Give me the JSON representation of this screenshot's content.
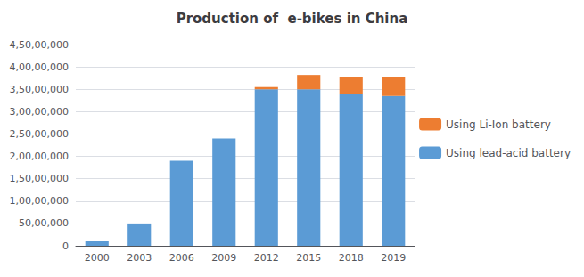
{
  "chart_data": {
    "type": "bar",
    "title": "Production of  e-bikes in China",
    "categories": [
      "2000",
      "2003",
      "2006",
      "2009",
      "2012",
      "2015",
      "2018",
      "2019"
    ],
    "series": [
      {
        "name": "Using lead-acid battery",
        "color": "#5b9bd5",
        "values": [
          1000000,
          5000000,
          19000000,
          24000000,
          35000000,
          35000000,
          34000000,
          33500000
        ]
      },
      {
        "name": "Using Li-Ion battery",
        "color": "#ed7d31",
        "values": [
          0,
          0,
          0,
          0,
          500000,
          3200000,
          3800000,
          4200000
        ]
      }
    ],
    "stacked": true,
    "ylim": [
      0,
      45000000
    ],
    "yticks": [
      0,
      {
        "value": 5000000,
        "label": "50,00,000"
      },
      {
        "value": 10000000,
        "label": "1,00,00,000"
      },
      {
        "value": 15000000,
        "label": "1,50,00,000"
      },
      {
        "value": 20000000,
        "label": "2,00,00,000"
      },
      {
        "value": 25000000,
        "label": "2,50,00,000"
      },
      {
        "value": 30000000,
        "label": "3,00,00,000"
      },
      {
        "value": 35000000,
        "label": "3,50,00,000"
      },
      {
        "value": 40000000,
        "label": "4,00,00,000"
      },
      {
        "value": 45000000,
        "label": "4,50,00,000"
      }
    ],
    "grid": true,
    "legend": "right"
  }
}
